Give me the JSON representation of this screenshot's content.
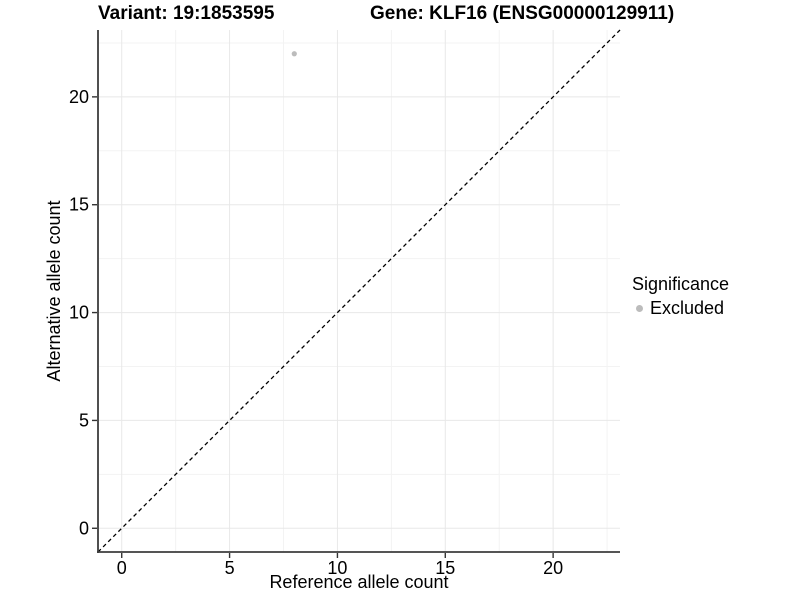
{
  "header": {
    "variant_title": "Variant: 19:1853595",
    "gene_title": "Gene: KLF16 (ENSG00000129911)"
  },
  "chart_data": {
    "type": "scatter",
    "xlabel": "Reference allele count",
    "ylabel": "Alternative allele count",
    "xlim": [
      -1.1,
      23.1
    ],
    "ylim": [
      -1.1,
      23.1
    ],
    "x_ticks": [
      0,
      5,
      10,
      15,
      20
    ],
    "y_ticks": [
      0,
      5,
      10,
      15,
      20
    ],
    "x_minor_ticks": [
      2.5,
      7.5,
      12.5,
      17.5,
      22.5
    ],
    "y_minor_ticks": [
      2.5,
      7.5,
      12.5,
      17.5,
      22.5
    ],
    "grid": "major+minor",
    "points": [
      {
        "x": 8,
        "y": 22,
        "significance": "Excluded"
      }
    ],
    "point_color": "#bcbcbc",
    "identity_line": {
      "slope": 1,
      "intercept": 0,
      "style": "dashed",
      "color": "#000000"
    },
    "legend": {
      "title": "Significance",
      "position": "right",
      "items": [
        {
          "label": "Excluded",
          "color": "#bcbcbc"
        }
      ]
    }
  },
  "colors": {
    "background": "#ffffff",
    "axis_line": "#3d3d3d",
    "tick": "#333333",
    "grid_major": "#e8e8e8",
    "grid_minor": "#f3f3f3",
    "text": "#000000"
  }
}
